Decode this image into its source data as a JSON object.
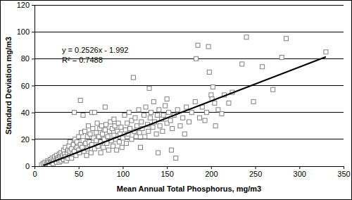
{
  "chart_data": {
    "type": "scatter",
    "x_label": "Mean Annual Total Phosphorus, mg/m3",
    "y_label": "Standard Deviation mg/m3",
    "annotations": [
      "y = 0.2526x - 1.992",
      "R² = 0.7488"
    ],
    "xlim": [
      0,
      350
    ],
    "xticks": [
      0,
      50,
      100,
      150,
      200,
      250,
      300,
      350
    ],
    "ylim": [
      0,
      120
    ],
    "yticks": [
      0,
      20,
      40,
      60,
      80,
      100,
      120
    ],
    "grid": true,
    "series": [
      {
        "type": "scatter",
        "marker": "square",
        "color": "#7f7f7f",
        "x": [
          8,
          10,
          12,
          12,
          14,
          15,
          16,
          17,
          18,
          19,
          20,
          20,
          21,
          22,
          23,
          24,
          25,
          25,
          26,
          27,
          28,
          28,
          29,
          30,
          30,
          31,
          32,
          33,
          33,
          34,
          35,
          35,
          36,
          37,
          38,
          38,
          39,
          40,
          40,
          40,
          42,
          42,
          43,
          44,
          45,
          45,
          46,
          47,
          48,
          48,
          50,
          50,
          51,
          52,
          52,
          53,
          54,
          55,
          55,
          56,
          57,
          58,
          59,
          60,
          60,
          61,
          62,
          63,
          64,
          65,
          65,
          66,
          67,
          68,
          68,
          70,
          70,
          71,
          72,
          73,
          74,
          75,
          75,
          76,
          77,
          78,
          79,
          80,
          80,
          81,
          82,
          83,
          84,
          85,
          86,
          87,
          88,
          89,
          90,
          90,
          91,
          92,
          93,
          94,
          95,
          96,
          97,
          98,
          99,
          100,
          102,
          103,
          104,
          105,
          106,
          107,
          108,
          110,
          110,
          112,
          113,
          114,
          115,
          116,
          118,
          119,
          120,
          121,
          122,
          124,
          125,
          126,
          128,
          129,
          130,
          131,
          132,
          134,
          135,
          136,
          138,
          139,
          140,
          141,
          142,
          144,
          145,
          146,
          148,
          150,
          150,
          152,
          154,
          155,
          156,
          158,
          160,
          162,
          165,
          168,
          170,
          172,
          175,
          178,
          182,
          183,
          185,
          187,
          190,
          193,
          195,
          197,
          198,
          200,
          201,
          202,
          204,
          205,
          208,
          212,
          215,
          220,
          224,
          235,
          240,
          248,
          258,
          270,
          280,
          285,
          330
        ],
        "values": [
          1,
          2,
          1,
          3,
          2,
          4,
          3,
          1,
          5,
          3,
          4,
          6,
          2,
          5,
          7,
          4,
          3,
          8,
          6,
          5,
          9,
          3,
          7,
          4,
          10,
          6,
          8,
          12,
          5,
          9,
          7,
          14,
          4,
          10,
          12,
          6,
          15,
          8,
          11,
          18,
          13,
          6,
          9,
          16,
          11,
          40,
          20,
          8,
          14,
          18,
          12,
          22,
          10,
          49,
          16,
          25,
          14,
          38,
          19,
          11,
          26,
          17,
          8,
          22,
          13,
          30,
          18,
          24,
          10,
          40,
          16,
          28,
          21,
          40,
          13,
          19,
          25,
          32,
          15,
          22,
          28,
          10,
          18,
          30,
          24,
          14,
          20,
          44,
          27,
          31,
          17,
          22,
          12,
          26,
          33,
          19,
          28,
          15,
          23,
          35,
          30,
          20,
          12,
          26,
          32,
          18,
          24,
          29,
          14,
          21,
          38,
          27,
          17,
          32,
          24,
          40,
          28,
          20,
          34,
          66,
          26,
          36,
          22,
          30,
          42,
          25,
          14,
          33,
          28,
          38,
          22,
          44,
          31,
          26,
          58,
          36,
          40,
          29,
          48,
          33,
          24,
          38,
          10,
          42,
          30,
          35,
          26,
          38,
          45,
          32,
          50,
          40,
          34,
          12,
          28,
          38,
          6,
          42,
          30,
          36,
          24,
          44,
          33,
          40,
          48,
          80,
          90,
          36,
          44,
          34,
          40,
          89,
          70,
          53,
          50,
          59,
          47,
          30,
          42,
          39,
          53,
          47,
          55,
          76,
          96,
          48,
          74,
          57,
          81,
          95,
          85
        ]
      },
      {
        "type": "line",
        "line_style": "solid",
        "color": "#000000",
        "x": [
          10,
          330
        ],
        "values": [
          0.534,
          81.37
        ]
      }
    ]
  }
}
